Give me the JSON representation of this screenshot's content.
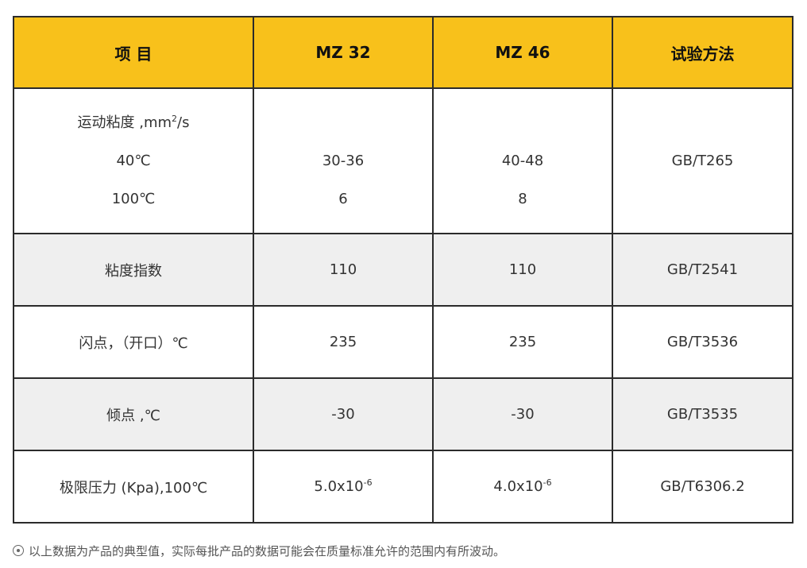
{
  "table": {
    "headers": [
      "项 目",
      "MZ 32",
      "MZ 46",
      "试验方法"
    ],
    "viscosity": {
      "label": "运动粘度 ,mm",
      "label_sup": "2",
      "label_tail": "/s",
      "sub40": "40℃",
      "sub100": "100℃",
      "mz32_40": "30-36",
      "mz32_100": "6",
      "mz46_40": "40-48",
      "mz46_100": "8",
      "method": "GB/T265"
    },
    "rows": [
      {
        "label": "粘度指数",
        "mz32": "110",
        "mz46": "110",
        "method": "GB/T2541"
      },
      {
        "label": "闪点，（开口）℃",
        "mz32": "235",
        "mz46": "235",
        "method": "GB/T3536"
      },
      {
        "label": "倾点 ,℃",
        "mz32": "-30",
        "mz46": "-30",
        "method": "GB/T3535"
      }
    ],
    "limit": {
      "label": "极限压力 (Kpa),100℃",
      "mz32_base": "5.0x10",
      "mz32_exp": "-6",
      "mz46_base": "4.0x10",
      "mz46_exp": "-6",
      "method": "GB/T6306.2"
    }
  },
  "note": {
    "icon": "circle-dot-icon",
    "text": "以上数据为产品的典型值，实际每批产品的数据可能会在质量标准允许的范围内有所波动。"
  }
}
